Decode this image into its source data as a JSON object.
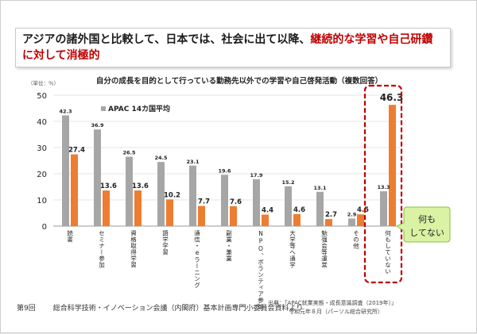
{
  "slide": {
    "headline_prefix": "アジアの諸外国と比較して、日本では、社会に出て以降、",
    "headline_highlight": "継続的な学習や自己研鑽に対して消極的",
    "unit_label": "（単位：％）",
    "page_number": "第9回",
    "meeting_name": "総合科学技術・イノベーション会議（内閣府）基本計画専門小委員会資料より",
    "source_line1": "出典：「APAC就業実態・成長意識調査（2019年）」",
    "source_line2": "令和元年８月（パーソル総合研究所）",
    "callout_text": "何もしてない",
    "callout_line1": "何も",
    "callout_line2": "してない"
  },
  "colors": {
    "apac_gray": "#a6a6a6",
    "japan_orange": "#ed7d31",
    "highlight_red": "#c00000",
    "callout_green": "#d9f2a4",
    "callout_border": "#8cbf3f"
  },
  "chart_data": {
    "type": "bar",
    "title": "自分の成長を目的として行っている勤務先以外での学習や自己啓発活動（複数回答）",
    "ylim": [
      0,
      50
    ],
    "yticks": [
      0,
      10,
      20,
      30,
      40,
      50
    ],
    "legend": "APAC 14カ国平均",
    "legend_position": "top-left",
    "categories": [
      "読書",
      "セミナー参加",
      "資格取得学習",
      "語学学習",
      "通信・eラーニング",
      "副業・兼業",
      "NPO、ボランティア参加",
      "大学等へ通学",
      "勉強会等運営",
      "その他",
      "何もしていない"
    ],
    "series": [
      {
        "name": "APAC 14カ国平均",
        "values": [
          42.3,
          36.9,
          26.5,
          24.5,
          23.1,
          19.6,
          17.9,
          15.2,
          13.1,
          2.9,
          13.3
        ]
      },
      {
        "values": [
          27.4,
          13.6,
          13.6,
          10.2,
          7.7,
          7.6,
          4.4,
          4.6,
          2.7,
          4.5,
          46.3
        ]
      }
    ]
  }
}
